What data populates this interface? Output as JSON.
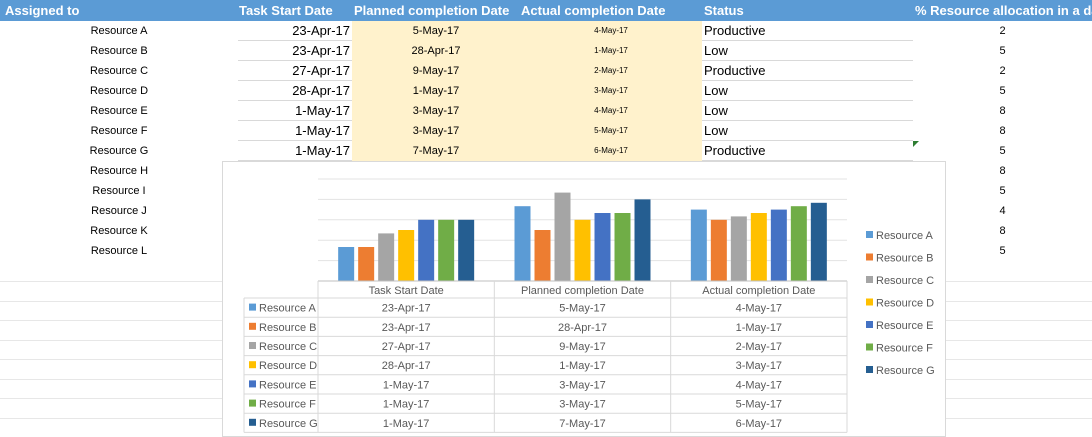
{
  "sheet": {
    "headers": {
      "assigned": "Assigned to",
      "start": "Task Start Date",
      "planned": "Planned completion Date",
      "actual": "Actual completion Date",
      "status": "Status",
      "pct": "% Resource allocation in a da"
    },
    "rows": [
      {
        "resource": "Resource A",
        "start": "23-Apr-17",
        "planned": "5-May-17",
        "actual": "4-May-17",
        "status": "Productive",
        "pct": "2"
      },
      {
        "resource": "Resource B",
        "start": "23-Apr-17",
        "planned": "28-Apr-17",
        "actual": "1-May-17",
        "status": "Low",
        "pct": "5"
      },
      {
        "resource": "Resource C",
        "start": "27-Apr-17",
        "planned": "9-May-17",
        "actual": "2-May-17",
        "status": "Productive",
        "pct": "2"
      },
      {
        "resource": "Resource D",
        "start": "28-Apr-17",
        "planned": "1-May-17",
        "actual": "3-May-17",
        "status": "Low",
        "pct": "5"
      },
      {
        "resource": "Resource E",
        "start": "1-May-17",
        "planned": "3-May-17",
        "actual": "4-May-17",
        "status": "Low",
        "pct": "8"
      },
      {
        "resource": "Resource F",
        "start": "1-May-17",
        "planned": "3-May-17",
        "actual": "5-May-17",
        "status": "Low",
        "pct": "8"
      },
      {
        "resource": "Resource G",
        "start": "1-May-17",
        "planned": "7-May-17",
        "actual": "6-May-17",
        "status": "Productive",
        "pct": "5"
      },
      {
        "resource": "Resource H",
        "pct": "8"
      },
      {
        "resource": "Resource I",
        "pct": "5"
      },
      {
        "resource": "Resource J",
        "pct": "4"
      },
      {
        "resource": "Resource K",
        "pct": "8"
      },
      {
        "resource": "Resource L",
        "pct": "5"
      }
    ]
  },
  "colors": {
    "header": "#5b9bd5",
    "highlight": "#fff2cc",
    "gridline": "#d9d9d9",
    "series": [
      "#5b9bd5",
      "#ed7d31",
      "#a5a5a5",
      "#ffc000",
      "#4472c4",
      "#70ad47",
      "#255e91"
    ]
  },
  "chart_data": {
    "type": "bar",
    "categories": [
      "Task Start Date",
      "Planned completion Date",
      "Actual completion Date"
    ],
    "series": [
      {
        "name": "Resource A",
        "values": [
          "23-Apr-17",
          "5-May-17",
          "4-May-17"
        ]
      },
      {
        "name": "Resource B",
        "values": [
          "23-Apr-17",
          "28-Apr-17",
          "1-May-17"
        ]
      },
      {
        "name": "Resource C",
        "values": [
          "27-Apr-17",
          "9-May-17",
          "2-May-17"
        ]
      },
      {
        "name": "Resource D",
        "values": [
          "28-Apr-17",
          "1-May-17",
          "3-May-17"
        ]
      },
      {
        "name": "Resource E",
        "values": [
          "1-May-17",
          "3-May-17",
          "4-May-17"
        ]
      },
      {
        "name": "Resource F",
        "values": [
          "1-May-17",
          "3-May-17",
          "5-May-17"
        ]
      },
      {
        "name": "Resource G",
        "values": [
          "1-May-17",
          "7-May-17",
          "6-May-17"
        ]
      }
    ],
    "y_scale": "date",
    "grid": true,
    "legend": "right",
    "data_table": true
  }
}
